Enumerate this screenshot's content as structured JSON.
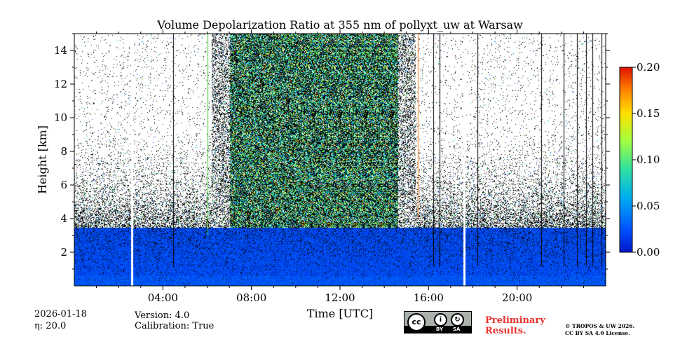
{
  "chart_data": {
    "type": "heatmap",
    "title": "Volume Depolarization Ratio at 355 nm of pollyxt_uw at Warsaw",
    "xlabel": "Time [UTC]",
    "ylabel": "Height [km]",
    "xlim": [
      0,
      24
    ],
    "ylim": [
      0,
      15
    ],
    "x_ticks": [
      4,
      8,
      12,
      16,
      20
    ],
    "x_tick_labels": [
      "04:00",
      "08:00",
      "12:00",
      "16:00",
      "20:00"
    ],
    "y_ticks": [
      2,
      4,
      6,
      8,
      10,
      12,
      14
    ],
    "y_tick_labels": [
      "2",
      "4",
      "6",
      "8",
      "10",
      "12",
      "14"
    ],
    "colorbar": {
      "range": [
        0.0,
        0.2
      ],
      "ticks": [
        0.0,
        0.05,
        0.1,
        0.15,
        0.2
      ],
      "tick_labels": [
        "0.00",
        "0.05",
        "0.10",
        "0.15",
        "0.20"
      ],
      "colormap": "jet",
      "colors": [
        "#0018c8",
        "#0060ff",
        "#00c0e0",
        "#30e0a0",
        "#90ff40",
        "#ffe000",
        "#ff8000",
        "#e01000"
      ]
    },
    "background_color": "#ffffff",
    "no_data_color": "#000000",
    "features": {
      "boundary_layer_top_km": 3.5,
      "boundary_layer_value": 0.02,
      "daytime_noisy_interval_utc": [
        7.0,
        14.6
      ],
      "daytime_noise_top_km": 15,
      "vertical_gaps_utc": [
        2.6,
        17.6
      ],
      "green_line_utc": 6.0,
      "orange_line_utc": 15.5,
      "black_lines_utc": [
        4.45,
        16.2,
        16.5,
        18.2,
        21.1,
        22.1,
        22.7,
        23.1,
        23.4,
        23.8
      ]
    }
  },
  "info": {
    "date": "2026-01-18",
    "eta": "η: 20.0",
    "version": "Version: 4.0",
    "calibration": "Calibration: True"
  },
  "license": {
    "badge_by": "BY",
    "badge_sa": "SA",
    "preliminary_line1": "Preliminary",
    "preliminary_line2": "Results.",
    "copyright_line1": "© TROPOS & UW 2026.",
    "copyright_line2": "CC BY SA 4.0 License."
  }
}
